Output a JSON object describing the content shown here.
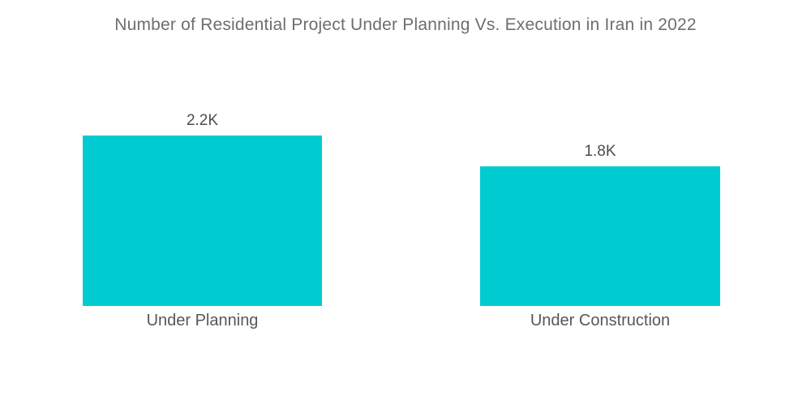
{
  "title": "Number of Residential Project Under Planning Vs. Execution in Iran in 2022",
  "colors": {
    "background": "#FFFFFF",
    "bar": "#00CBD1",
    "title_text": "#6D6E71",
    "value_text": "#4B4C4E",
    "category_text": "#56575A"
  },
  "chart_data": {
    "type": "bar",
    "title": "Number of Residential Project Under Planning Vs. Execution in Iran in 2022",
    "categories": [
      "Under Planning",
      "Under Construction"
    ],
    "values": [
      2200,
      1800
    ],
    "value_labels": [
      "2.2K",
      "1.8K"
    ],
    "xlabel": "",
    "ylabel": "",
    "ylim": [
      0,
      2200
    ],
    "grid": false,
    "legend": false,
    "axes_visible": false,
    "bar_color": "#00CBD1",
    "orientation": "vertical"
  }
}
